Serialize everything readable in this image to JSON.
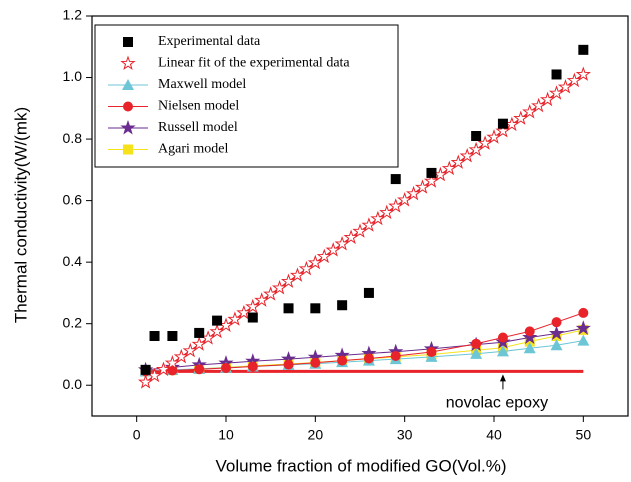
{
  "chart_data": {
    "type": "scatter",
    "xlabel": "Volume fraction of modified GO(Vol.%)",
    "ylabel": "Thermal conductivity(W/(mk)",
    "xlim": [
      -5,
      55
    ],
    "ylim": [
      -0.1,
      1.2
    ],
    "xticks": [
      0,
      10,
      20,
      30,
      40,
      50
    ],
    "yticks": [
      {
        "value": 0,
        "label": "0.0"
      },
      {
        "value": 0.2,
        "label": "0.2"
      },
      {
        "value": 0.4,
        "label": "0.4"
      },
      {
        "value": 0.6,
        "label": "0.6"
      },
      {
        "value": 0.8,
        "label": "0.8"
      },
      {
        "value": 1.0,
        "label": "1.0"
      },
      {
        "value": 1.2,
        "label": "1.2"
      }
    ],
    "legend": "upper left",
    "series": [
      {
        "name": "Experimental data",
        "color": "#000000",
        "marker": "square",
        "line": false,
        "x": [
          1,
          2,
          4,
          7,
          9,
          13,
          17,
          20,
          23,
          26,
          29,
          33,
          38,
          41,
          47,
          50
        ],
        "values": [
          0.05,
          0.16,
          0.16,
          0.17,
          0.21,
          0.22,
          0.25,
          0.25,
          0.26,
          0.3,
          0.67,
          0.69,
          0.81,
          0.85,
          1.01,
          1.09
        ]
      },
      {
        "name": " Linear fit of the experimental data",
        "color": "#e8232a",
        "marker": "star",
        "line": true,
        "x": [
          1,
          2,
          3,
          4,
          5,
          6,
          7,
          8,
          9,
          10,
          11,
          12,
          13,
          14,
          15,
          16,
          17,
          18,
          19,
          20,
          21,
          22,
          23,
          24,
          25,
          26,
          27,
          28,
          29,
          30,
          31,
          32,
          33,
          34,
          35,
          36,
          37,
          38,
          39,
          40,
          41,
          42,
          43,
          44,
          45,
          46,
          47,
          48,
          49,
          50
        ],
        "values": [
          0.01,
          0.031,
          0.051,
          0.072,
          0.092,
          0.112,
          0.133,
          0.153,
          0.174,
          0.194,
          0.214,
          0.235,
          0.255,
          0.276,
          0.296,
          0.316,
          0.337,
          0.357,
          0.378,
          0.398,
          0.418,
          0.439,
          0.459,
          0.48,
          0.5,
          0.52,
          0.541,
          0.561,
          0.582,
          0.602,
          0.622,
          0.643,
          0.663,
          0.684,
          0.704,
          0.724,
          0.745,
          0.765,
          0.786,
          0.806,
          0.826,
          0.847,
          0.867,
          0.888,
          0.908,
          0.928,
          0.949,
          0.969,
          0.99,
          1.01
        ]
      },
      {
        "name": "Maxwell model",
        "color": "#6cc6d6",
        "marker": "triangle",
        "line": true,
        "x": [
          1,
          4,
          7,
          10,
          13,
          17,
          20,
          23,
          26,
          29,
          33,
          38,
          41,
          44,
          47,
          50
        ],
        "values": [
          0.045,
          0.05,
          0.053,
          0.057,
          0.061,
          0.066,
          0.07,
          0.075,
          0.08,
          0.085,
          0.092,
          0.102,
          0.11,
          0.12,
          0.13,
          0.145
        ]
      },
      {
        "name": "Nielsen model",
        "color": "#e8232a",
        "marker": "circle",
        "line": true,
        "x": [
          1,
          4,
          7,
          10,
          13,
          17,
          20,
          23,
          26,
          29,
          33,
          38,
          41,
          44,
          47,
          50
        ],
        "values": [
          0.045,
          0.048,
          0.052,
          0.056,
          0.061,
          0.067,
          0.073,
          0.08,
          0.087,
          0.095,
          0.108,
          0.135,
          0.155,
          0.175,
          0.205,
          0.235
        ]
      },
      {
        "name": "Russell model",
        "color": "#6a2c8e",
        "marker": "star",
        "line": true,
        "x": [
          1,
          4,
          7,
          10,
          13,
          17,
          20,
          23,
          26,
          29,
          33,
          38,
          41,
          44,
          47,
          50
        ],
        "values": [
          0.05,
          0.058,
          0.066,
          0.072,
          0.078,
          0.085,
          0.091,
          0.097,
          0.103,
          0.109,
          0.118,
          0.132,
          0.14,
          0.155,
          0.168,
          0.185
        ]
      },
      {
        "name": "Agari model",
        "color": "#f5e21a",
        "marker": "square",
        "line": true,
        "x": [
          1,
          4,
          7,
          10,
          13,
          17,
          20,
          23,
          26,
          29,
          33,
          38,
          41,
          44,
          47,
          50
        ],
        "values": [
          0.045,
          0.049,
          0.053,
          0.058,
          0.063,
          0.069,
          0.074,
          0.08,
          0.086,
          0.092,
          0.1,
          0.114,
          0.122,
          0.142,
          0.16,
          0.18
        ]
      }
    ],
    "reference_line": {
      "label": "novolac epoxy",
      "value": 0.045,
      "x": [
        1,
        50
      ],
      "arrow_x": 41,
      "color": "#e8232a"
    }
  }
}
